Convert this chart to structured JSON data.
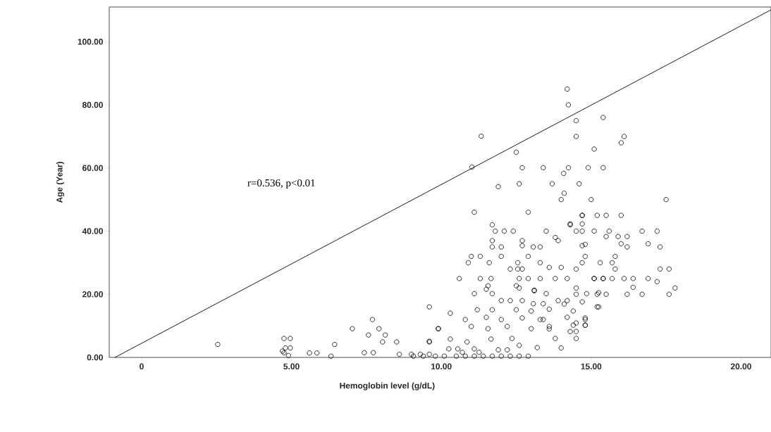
{
  "chart_data": {
    "type": "scatter",
    "xlabel": "Hemoglobin level (g/dL)",
    "ylabel": "Age (Year)",
    "annotations": [
      "r=0.536, p<0.01"
    ],
    "xlim": [
      -1.08,
      21.0
    ],
    "ylim": [
      0,
      111
    ],
    "xticks": [
      0,
      {
        "value": 5,
        "label": "5.00"
      },
      {
        "value": 10,
        "label": "10.00"
      },
      {
        "value": 15,
        "label": "15.00"
      },
      {
        "value": 20,
        "label": "20.00"
      }
    ],
    "yticks": [
      {
        "value": 0,
        "label": "0.00"
      },
      {
        "value": 20,
        "label": "20.00"
      },
      {
        "value": 40,
        "label": "40.00"
      },
      {
        "value": 60,
        "label": "60.00"
      },
      {
        "value": 80,
        "label": "80.00"
      },
      {
        "value": 100,
        "label": "100.00"
      }
    ],
    "series": [
      {
        "color": "#000000",
        "marker": "circle",
        "x": [
          2.54,
          4.75,
          4.96,
          4.7,
          4.8,
          4.96,
          4.75,
          4.9,
          5.6,
          5.85,
          6.32,
          6.44,
          7.03,
          7.7,
          7.57,
          7.92,
          8.13,
          8.04,
          8.51,
          7.43,
          7.73,
          8.6,
          9.0,
          9.3,
          9.6,
          9.6,
          9.9,
          10.3,
          11.33,
          11.02,
          12.5,
          12.7,
          13.4,
          14.24,
          14.9,
          15.4,
          14.08,
          11.9,
          12.6,
          13.7,
          14.6,
          14.1,
          14.0,
          15.0,
          14.5,
          14.5,
          15.1,
          14.24,
          11.1,
          12.9,
          11.7,
          11.8,
          12.1,
          12.4,
          13.5,
          13.8,
          13.9,
          14.3,
          14.7,
          14.7,
          11.7,
          11.7,
          12.0,
          12.7,
          12.7,
          13.07,
          13.3,
          14.7,
          11.0,
          11.3,
          10.9,
          11.6,
          12.0,
          12.55,
          12.9,
          13.3,
          12.55,
          12.7,
          12.3,
          13.6,
          14.0,
          14.5,
          14.7,
          10.6,
          11.3,
          11.66,
          12.6,
          12.9,
          13.3,
          13.8,
          14.2,
          15.1,
          15.4,
          11.56,
          12.5,
          12.6,
          11.1,
          11.7,
          13.1,
          13.5,
          11.5,
          14.5,
          14.85,
          15.25,
          12.0,
          12.3,
          12.7,
          13.07,
          13.4,
          13.9,
          14.2,
          9.6,
          11.2,
          11.7,
          12.5,
          13.0,
          13.6,
          14.4,
          15.2,
          10.8,
          11.5,
          12.0,
          12.7,
          13.4,
          14.2,
          14.8,
          9.9,
          11.0,
          11.56,
          12.2,
          13.0,
          13.6,
          14.4,
          14.8,
          14.5,
          14.5,
          9.6,
          10.3,
          10.86,
          11.66,
          12.36,
          13.2,
          12.6,
          10.25,
          10.55,
          11.1,
          11.9,
          12.2,
          9.07,
          9.4,
          9.8,
          10.1,
          10.5,
          10.8,
          11.1,
          11.4,
          11.7,
          12.0,
          12.3,
          12.6,
          12.9,
          10.7,
          11.26,
          14.2,
          15.4,
          16.1,
          16.0,
          17.5,
          14.7,
          15.2,
          15.5,
          16.0,
          14.3,
          14.7,
          14.5,
          15.1,
          15.6,
          15.5,
          15.9,
          16.2,
          16.7,
          17.2,
          16.0,
          16.2,
          16.9,
          17.3,
          14.8,
          14.8,
          15.8,
          15.3,
          15.7,
          15.8,
          17.3,
          17.6,
          15.1,
          15.4,
          15.7,
          16.1,
          16.4,
          16.9,
          17.2,
          16.4,
          17.8,
          17.6,
          16.2,
          16.7,
          15.5,
          15.2,
          14.5,
          13.1,
          14.1,
          15.25,
          14.7,
          14.8,
          14.8,
          14.5,
          14.3,
          13.3,
          13.6,
          13.8,
          14.0
        ],
        "values": [
          4.1,
          6.0,
          6.0,
          2.0,
          3.0,
          3.0,
          1.5,
          0.6,
          1.4,
          1.4,
          0.4,
          4.1,
          9.1,
          12.0,
          7.1,
          9.1,
          7.1,
          4.9,
          4.9,
          1.5,
          1.5,
          1.0,
          1.0,
          1.0,
          1.0,
          4.9,
          9.1,
          14.0,
          70.1,
          60.3,
          65.0,
          60.1,
          60.1,
          60.1,
          60.1,
          60.1,
          58.3,
          54.1,
          55.0,
          55.0,
          55.0,
          52.0,
          50.0,
          50.0,
          75.0,
          70.0,
          66.0,
          80.0,
          46.0,
          46.0,
          42.0,
          40.0,
          40.0,
          40.0,
          40.0,
          38.0,
          37.0,
          42.0,
          40.0,
          45.0,
          37.0,
          35.0,
          35.0,
          35.4,
          37.0,
          35.0,
          35.0,
          35.4,
          32.0,
          32.0,
          30.0,
          30.0,
          32.0,
          30.0,
          32.0,
          30.0,
          28.0,
          28.0,
          28.0,
          28.5,
          28.5,
          28.0,
          30.0,
          25.0,
          25.0,
          25.0,
          25.0,
          25.0,
          25.0,
          25.0,
          25.0,
          25.0,
          25.0,
          22.7,
          22.7,
          22.0,
          20.2,
          20.2,
          21.1,
          20.2,
          21.6,
          22.0,
          20.2,
          20.5,
          18.0,
          18.0,
          18.0,
          17.0,
          17.0,
          18.0,
          18.0,
          16.0,
          15.1,
          15.1,
          15.1,
          14.7,
          15.3,
          14.7,
          16.0,
          12.0,
          12.7,
          12.0,
          12.5,
          12.0,
          12.7,
          12.0,
          9.1,
          9.8,
          9.1,
          9.8,
          9.1,
          9.8,
          10.2,
          10.2,
          8.2,
          6.0,
          5.1,
          5.8,
          4.9,
          5.8,
          6.0,
          3.1,
          3.8,
          2.7,
          2.7,
          2.7,
          2.4,
          2.4,
          0.4,
          0.4,
          0.4,
          0.4,
          0.4,
          0.4,
          0.4,
          0.4,
          0.4,
          0.4,
          0.4,
          0.4,
          0.4,
          1.6,
          1.6,
          85.0,
          76.0,
          70.0,
          68.0,
          50.0,
          45.0,
          45.0,
          45.0,
          45.0,
          42.3,
          42.3,
          40.0,
          40.0,
          40.0,
          38.3,
          38.3,
          38.3,
          40.0,
          40.0,
          36.0,
          35.0,
          36.0,
          35.0,
          35.8,
          32.0,
          32.0,
          30.0,
          30.0,
          28.0,
          28.0,
          28.0,
          25.0,
          25.0,
          25.0,
          25.0,
          25.0,
          25.0,
          24.0,
          22.2,
          22.0,
          20.0,
          20.0,
          20.0,
          20.0,
          20.0,
          20.0,
          21.3,
          16.9,
          16.0,
          17.6,
          12.5,
          10.2,
          10.9,
          8.2,
          12.0,
          9.0,
          6.0,
          3.0
        ]
      },
      {
        "type": "line",
        "color": "#000000",
        "x": [
          -0.89,
          21.0
        ],
        "values": [
          0,
          110.1
        ]
      }
    ]
  }
}
